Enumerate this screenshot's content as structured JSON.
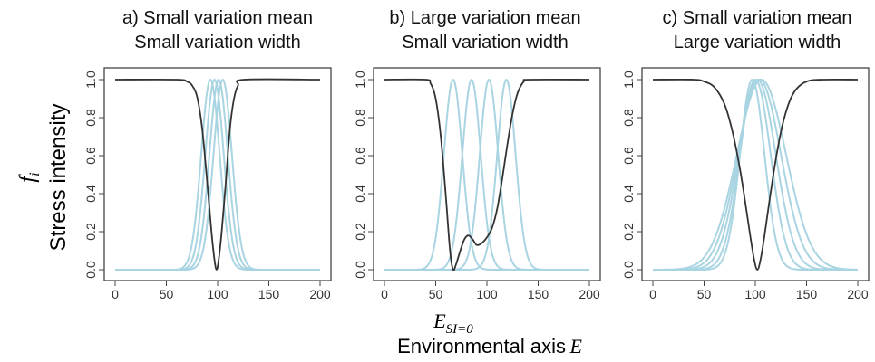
{
  "figure": {
    "y_axis_symbol": "f",
    "y_axis_symbol_subscript": "i",
    "y_axis_label": "Stress intensity",
    "x_annotation_symbol": "E",
    "x_annotation_subscript": "SI=0",
    "x_axis_label": "Environmental axis",
    "x_axis_symbol": "E"
  },
  "chart_data": [
    {
      "type": "line",
      "title_line1": "a) Small variation mean",
      "title_line2": "Small variation width",
      "xlim": [
        0,
        200
      ],
      "ylim": [
        0,
        1
      ],
      "x_ticks": [
        "0",
        "50",
        "100",
        "150",
        "200"
      ],
      "y_ticks": [
        "0.0",
        "0.2",
        "0.4",
        "0.6",
        "0.8",
        "1.0"
      ],
      "grid": false,
      "colors": {
        "stress_curve": "#333333",
        "response_curves": "#a9d4e2"
      },
      "response_curves": [
        {
          "mean": 93,
          "width": 9
        },
        {
          "mean": 97,
          "width": 9
        },
        {
          "mean": 101,
          "width": 9
        },
        {
          "mean": 105,
          "width": 9
        }
      ],
      "stress_curve": {
        "min_x": 99,
        "points": [
          [
            0,
            1
          ],
          [
            60,
            1
          ],
          [
            70,
            0.99
          ],
          [
            75,
            0.97
          ],
          [
            80,
            0.91
          ],
          [
            85,
            0.74
          ],
          [
            90,
            0.45
          ],
          [
            94,
            0.2
          ],
          [
            97,
            0.05
          ],
          [
            99,
            0.0
          ],
          [
            101,
            0.05
          ],
          [
            104,
            0.2
          ],
          [
            108,
            0.46
          ],
          [
            112,
            0.74
          ],
          [
            116,
            0.9
          ],
          [
            120,
            0.97
          ],
          [
            126,
            1
          ],
          [
            200,
            1
          ]
        ]
      }
    },
    {
      "type": "line",
      "title_line1": "b) Large variation mean",
      "title_line2": "Small variation width",
      "xlim": [
        0,
        200
      ],
      "ylim": [
        0,
        1
      ],
      "x_ticks": [
        "0",
        "50",
        "100",
        "150",
        "200"
      ],
      "y_ticks": [
        "0.0",
        "0.2",
        "0.4",
        "0.6",
        "0.8",
        "1.0"
      ],
      "grid": false,
      "colors": {
        "stress_curve": "#333333",
        "response_curves": "#a9d4e2"
      },
      "response_curves": [
        {
          "mean": 67,
          "width": 9
        },
        {
          "mean": 85,
          "width": 9
        },
        {
          "mean": 102,
          "width": 9
        },
        {
          "mean": 119,
          "width": 9
        }
      ],
      "stress_curve": {
        "min_x": 67,
        "points": [
          [
            0,
            1
          ],
          [
            40,
            1
          ],
          [
            45,
            0.98
          ],
          [
            50,
            0.9
          ],
          [
            55,
            0.7
          ],
          [
            60,
            0.38
          ],
          [
            64,
            0.1
          ],
          [
            67,
            0.0
          ],
          [
            70,
            0.03
          ],
          [
            74,
            0.1
          ],
          [
            78,
            0.16
          ],
          [
            82,
            0.18
          ],
          [
            86,
            0.16
          ],
          [
            90,
            0.13
          ],
          [
            95,
            0.14
          ],
          [
            100,
            0.17
          ],
          [
            105,
            0.22
          ],
          [
            110,
            0.32
          ],
          [
            115,
            0.48
          ],
          [
            120,
            0.66
          ],
          [
            125,
            0.82
          ],
          [
            130,
            0.93
          ],
          [
            136,
            0.99
          ],
          [
            142,
            1
          ],
          [
            200,
            1
          ]
        ]
      }
    },
    {
      "type": "line",
      "title_line1": "c) Small variation mean",
      "title_line2": "Large variation width",
      "xlim": [
        0,
        200
      ],
      "ylim": [
        0,
        1
      ],
      "x_ticks": [
        "0",
        "50",
        "100",
        "150",
        "200"
      ],
      "y_ticks": [
        "0.0",
        "0.2",
        "0.4",
        "0.6",
        "0.8",
        "1.0"
      ],
      "grid": false,
      "colors": {
        "stress_curve": "#333333",
        "response_curves": "#a9d4e2"
      },
      "response_curves": [
        {
          "mean": 97,
          "width": 12
        },
        {
          "mean": 100,
          "width": 15
        },
        {
          "mean": 102,
          "width": 18
        },
        {
          "mean": 104,
          "width": 21
        },
        {
          "mean": 106,
          "width": 24
        }
      ],
      "stress_curve": {
        "min_x": 102,
        "points": [
          [
            0,
            1
          ],
          [
            40,
            1
          ],
          [
            50,
            0.99
          ],
          [
            60,
            0.96
          ],
          [
            70,
            0.87
          ],
          [
            78,
            0.72
          ],
          [
            85,
            0.53
          ],
          [
            90,
            0.36
          ],
          [
            95,
            0.18
          ],
          [
            99,
            0.05
          ],
          [
            102,
            0.0
          ],
          [
            105,
            0.05
          ],
          [
            109,
            0.18
          ],
          [
            114,
            0.37
          ],
          [
            120,
            0.58
          ],
          [
            126,
            0.75
          ],
          [
            133,
            0.88
          ],
          [
            140,
            0.95
          ],
          [
            150,
            0.99
          ],
          [
            165,
            1
          ],
          [
            200,
            1
          ]
        ]
      }
    }
  ]
}
